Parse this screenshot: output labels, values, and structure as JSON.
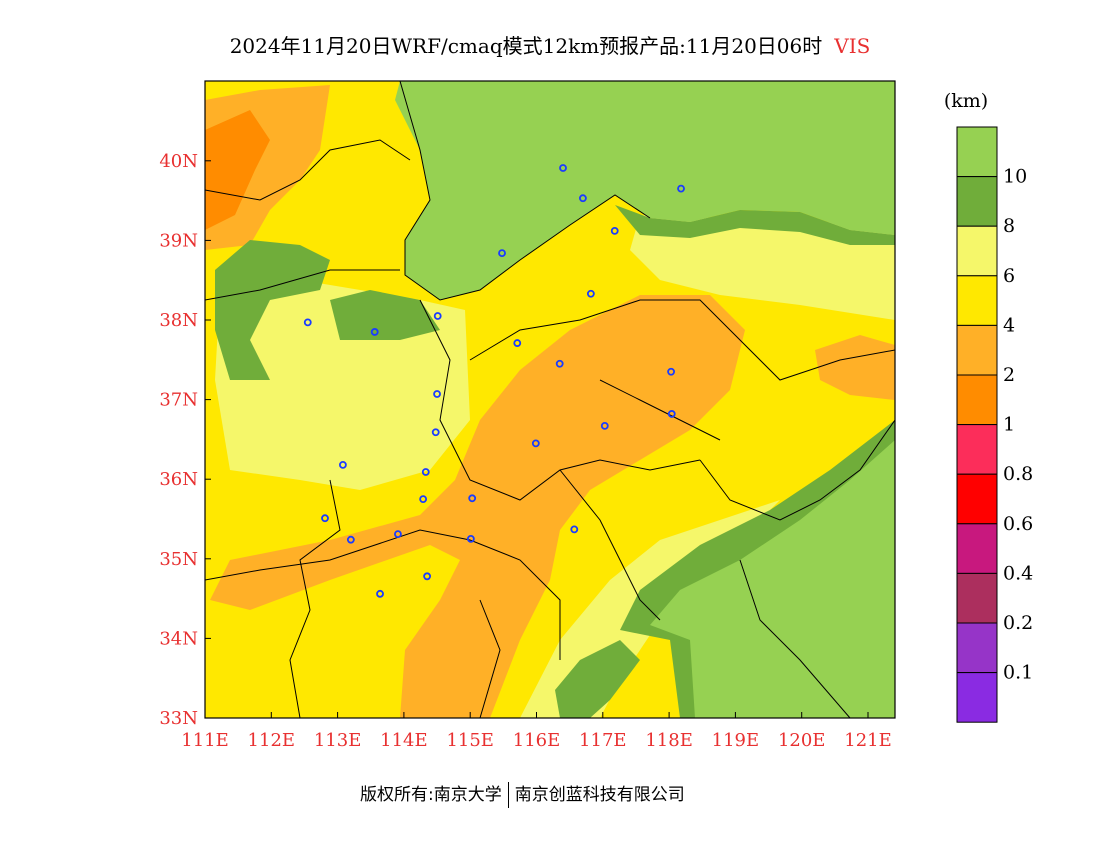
{
  "title": {
    "text": "2024年11月20日WRF/cmaq模式12km预报产品:11月20日06时",
    "variable": "VIS"
  },
  "map": {
    "lon_range": [
      111,
      121.4
    ],
    "lat_range": [
      33,
      41
    ],
    "x_ticks": [
      "111E",
      "112E",
      "113E",
      "114E",
      "115E",
      "116E",
      "117E",
      "118E",
      "119E",
      "120E",
      "121E"
    ],
    "y_ticks": [
      "33N",
      "34N",
      "35N",
      "36N",
      "37N",
      "38N",
      "39N",
      "40N"
    ],
    "cities": [
      [
        116.4,
        39.91
      ],
      [
        116.7,
        39.53
      ],
      [
        118.18,
        39.65
      ],
      [
        117.18,
        39.12
      ],
      [
        115.48,
        38.84
      ],
      [
        116.82,
        38.33
      ],
      [
        114.51,
        38.05
      ],
      [
        112.55,
        37.97
      ],
      [
        113.56,
        37.85
      ],
      [
        115.71,
        37.71
      ],
      [
        116.35,
        37.45
      ],
      [
        118.03,
        37.35
      ],
      [
        114.5,
        37.07
      ],
      [
        118.04,
        36.82
      ],
      [
        117.03,
        36.67
      ],
      [
        114.48,
        36.59
      ],
      [
        115.99,
        36.45
      ],
      [
        113.08,
        36.18
      ],
      [
        114.33,
        36.09
      ],
      [
        115.03,
        35.76
      ],
      [
        114.29,
        35.75
      ],
      [
        112.81,
        35.51
      ],
      [
        116.57,
        35.37
      ],
      [
        113.2,
        35.24
      ],
      [
        113.91,
        35.31
      ],
      [
        115.01,
        35.25
      ],
      [
        114.35,
        34.78
      ],
      [
        113.64,
        34.56
      ]
    ]
  },
  "colorbar": {
    "unit": "(km)",
    "colors": [
      "#96d152",
      "#70ad3a",
      "#f5f76a",
      "#ffe800",
      "#ffb027",
      "#ff8c00",
      "#fc2d5a",
      "#ff0000",
      "#c8187e",
      "#ac2f5e",
      "#9634c8",
      "#8a2be2"
    ],
    "labels": [
      "10",
      "8",
      "6",
      "4",
      "2",
      "1",
      "0.8",
      "0.6",
      "0.4",
      "0.2",
      "0.1"
    ]
  },
  "footer": {
    "left": "版权所有:南京大学",
    "right": "南京创蓝科技有限公司"
  }
}
